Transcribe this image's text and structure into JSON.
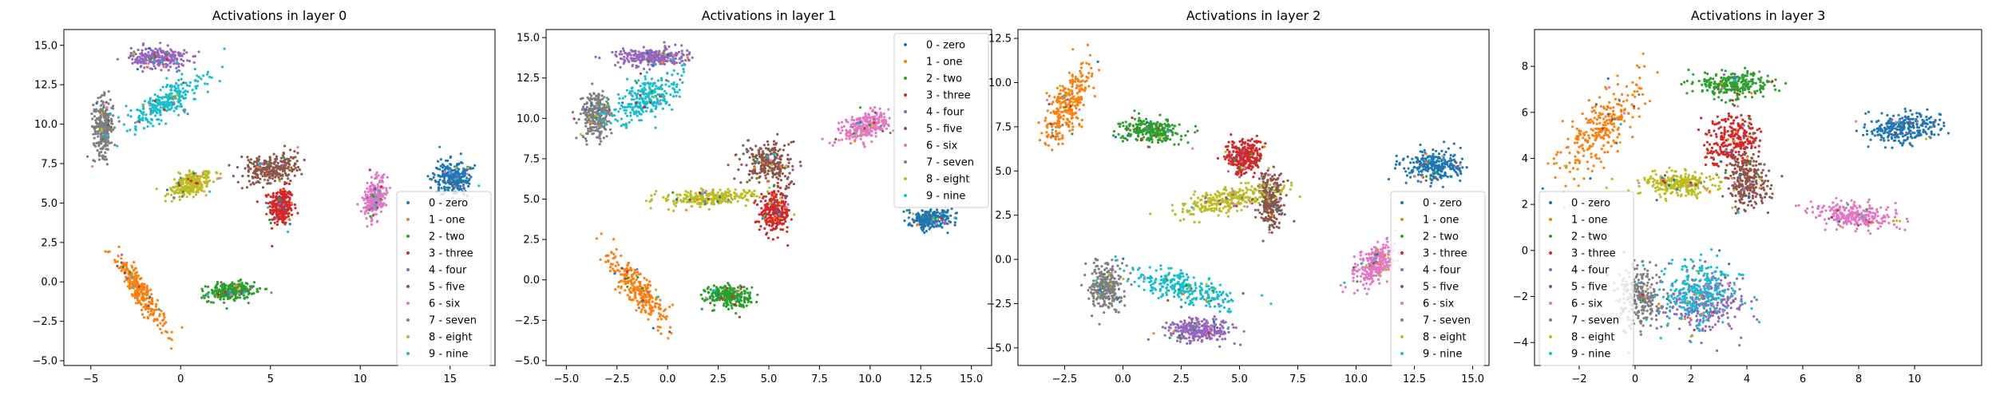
{
  "legend_items": [
    {
      "label": "0 - zero",
      "color": "#1f77b4"
    },
    {
      "label": "1 - one",
      "color": "#ff7f0e"
    },
    {
      "label": "2 - two",
      "color": "#2ca02c"
    },
    {
      "label": "3 - three",
      "color": "#d62728"
    },
    {
      "label": "4 - four",
      "color": "#9467bd"
    },
    {
      "label": "5 - five",
      "color": "#8c564b"
    },
    {
      "label": "6 - six",
      "color": "#e377c2"
    },
    {
      "label": "7 - seven",
      "color": "#7f7f7f"
    },
    {
      "label": "8 - eight",
      "color": "#bcbd22"
    },
    {
      "label": "9 - nine",
      "color": "#17becf"
    }
  ],
  "chart_data": [
    {
      "type": "scatter",
      "title": "Activations in layer 0",
      "xlabel": "",
      "ylabel": "",
      "xlim": [
        -6.5,
        17.5
      ],
      "ylim": [
        -5.3,
        16.0
      ],
      "xticks": [
        -5,
        0,
        5,
        10,
        15
      ],
      "yticks": [
        -5.0,
        -2.5,
        0.0,
        2.5,
        5.0,
        7.5,
        10.0,
        12.5,
        15.0
      ],
      "ytick_labels": [
        "−5.0",
        "−2.5",
        "0.0",
        "2.5",
        "5.0",
        "7.5",
        "10.0",
        "12.5",
        "15.0"
      ],
      "xtick_labels": [
        "−5",
        "0",
        "5",
        "10",
        "15"
      ],
      "legend_position": "lower right",
      "grid": false,
      "clusters": [
        {
          "class": 0,
          "cx": 15.2,
          "cy": 6.6,
          "sx": 0.9,
          "sy": 1.0,
          "angle": 0
        },
        {
          "class": 1,
          "cx": -2.3,
          "cy": -0.5,
          "sx": 0.5,
          "sy": 2.4,
          "angle": 0.5
        },
        {
          "class": 2,
          "cx": 2.8,
          "cy": -0.6,
          "sx": 1.2,
          "sy": 0.5,
          "angle": 0.1
        },
        {
          "class": 3,
          "cx": 5.6,
          "cy": 4.8,
          "sx": 0.6,
          "sy": 1.1,
          "angle": 0
        },
        {
          "class": 4,
          "cx": -1.2,
          "cy": 14.2,
          "sx": 1.4,
          "sy": 0.6,
          "angle": 0
        },
        {
          "class": 5,
          "cx": 5.0,
          "cy": 7.2,
          "sx": 1.4,
          "sy": 0.8,
          "angle": 0.2
        },
        {
          "class": 6,
          "cx": 10.8,
          "cy": 5.3,
          "sx": 0.5,
          "sy": 1.2,
          "angle": -0.2
        },
        {
          "class": 7,
          "cx": -4.3,
          "cy": 9.8,
          "sx": 0.5,
          "sy": 1.6,
          "angle": 0
        },
        {
          "class": 8,
          "cx": 0.6,
          "cy": 6.2,
          "sx": 1.2,
          "sy": 0.6,
          "angle": 0.4
        },
        {
          "class": 9,
          "cx": -0.8,
          "cy": 11.4,
          "sx": 2.3,
          "sy": 0.8,
          "angle": 0.6
        }
      ]
    },
    {
      "type": "scatter",
      "title": "Activations in layer 1",
      "xlabel": "",
      "ylabel": "",
      "xlim": [
        -6.0,
        16.0
      ],
      "ylim": [
        -5.3,
        15.5
      ],
      "xticks": [
        -5.0,
        -2.5,
        0.0,
        2.5,
        5.0,
        7.5,
        10.0,
        12.5,
        15.0
      ],
      "xtick_labels": [
        "−5.0",
        "−2.5",
        "0.0",
        "2.5",
        "5.0",
        "7.5",
        "10.0",
        "12.5",
        "15.0"
      ],
      "yticks": [
        -5.0,
        -2.5,
        0.0,
        2.5,
        5.0,
        7.5,
        10.0,
        12.5,
        15.0
      ],
      "ytick_labels": [
        "−5.0",
        "−2.5",
        "0.0",
        "2.5",
        "5.0",
        "7.5",
        "10.0",
        "12.5",
        "15.0"
      ],
      "legend_position": "upper right",
      "grid": false,
      "clusters": [
        {
          "class": 0,
          "cx": 13.0,
          "cy": 3.8,
          "sx": 1.0,
          "sy": 0.5,
          "angle": 0
        },
        {
          "class": 1,
          "cx": -1.5,
          "cy": -0.6,
          "sx": 0.6,
          "sy": 2.3,
          "angle": 0.6
        },
        {
          "class": 2,
          "cx": 3.0,
          "cy": -1.0,
          "sx": 1.0,
          "sy": 0.6,
          "angle": 0
        },
        {
          "class": 3,
          "cx": 5.3,
          "cy": 4.2,
          "sx": 0.7,
          "sy": 1.1,
          "angle": 0
        },
        {
          "class": 4,
          "cx": -0.8,
          "cy": 13.8,
          "sx": 1.6,
          "sy": 0.5,
          "angle": 0
        },
        {
          "class": 5,
          "cx": 5.0,
          "cy": 7.2,
          "sx": 1.0,
          "sy": 1.2,
          "angle": 0.4
        },
        {
          "class": 6,
          "cx": 9.8,
          "cy": 9.5,
          "sx": 1.2,
          "sy": 0.7,
          "angle": 0.5
        },
        {
          "class": 7,
          "cx": -3.5,
          "cy": 10.2,
          "sx": 0.7,
          "sy": 1.3,
          "angle": 0
        },
        {
          "class": 8,
          "cx": 2.2,
          "cy": 5.1,
          "sx": 2.0,
          "sy": 0.45,
          "angle": 0.05
        },
        {
          "class": 9,
          "cx": -1.2,
          "cy": 11.2,
          "sx": 1.8,
          "sy": 0.9,
          "angle": 0.7
        }
      ]
    },
    {
      "type": "scatter",
      "title": "Activations in layer 2",
      "xlabel": "",
      "ylabel": "",
      "xlim": [
        -4.5,
        15.7
      ],
      "ylim": [
        -6.0,
        13.0
      ],
      "xticks": [
        -2.5,
        0.0,
        2.5,
        5.0,
        7.5,
        10.0,
        12.5,
        15.0
      ],
      "xtick_labels": [
        "−2.5",
        "0.0",
        "2.5",
        "5.0",
        "7.5",
        "10.0",
        "12.5",
        "15.0"
      ],
      "yticks": [
        -5.0,
        -2.5,
        0.0,
        2.5,
        5.0,
        7.5,
        10.0,
        12.5
      ],
      "ytick_labels": [
        "−5.0",
        "−2.5",
        "0.0",
        "2.5",
        "5.0",
        "7.5",
        "10.0",
        "12.5"
      ],
      "legend_position": "lower right",
      "grid": false,
      "clusters": [
        {
          "class": 0,
          "cx": 13.3,
          "cy": 5.3,
          "sx": 1.2,
          "sy": 0.8,
          "angle": 0
        },
        {
          "class": 1,
          "cx": -2.4,
          "cy": 8.8,
          "sx": 0.6,
          "sy": 2.2,
          "angle": -0.35
        },
        {
          "class": 2,
          "cx": 1.2,
          "cy": 7.3,
          "sx": 1.1,
          "sy": 0.6,
          "angle": 0
        },
        {
          "class": 3,
          "cx": 5.2,
          "cy": 5.8,
          "sx": 0.7,
          "sy": 0.9,
          "angle": 0
        },
        {
          "class": 4,
          "cx": 3.3,
          "cy": -4.0,
          "sx": 1.3,
          "sy": 0.6,
          "angle": 0
        },
        {
          "class": 5,
          "cx": 6.3,
          "cy": 3.5,
          "sx": 0.5,
          "sy": 1.5,
          "angle": 0
        },
        {
          "class": 6,
          "cx": 10.8,
          "cy": -0.2,
          "sx": 0.6,
          "sy": 1.2,
          "angle": -0.5
        },
        {
          "class": 7,
          "cx": -0.7,
          "cy": -1.5,
          "sx": 0.6,
          "sy": 1.2,
          "angle": 0
        },
        {
          "class": 8,
          "cx": 4.5,
          "cy": 3.4,
          "sx": 2.0,
          "sy": 0.6,
          "angle": 0.3
        },
        {
          "class": 9,
          "cx": 2.5,
          "cy": -1.6,
          "sx": 2.2,
          "sy": 0.7,
          "angle": -0.4
        }
      ]
    },
    {
      "type": "scatter",
      "title": "Activations in layer 3",
      "xlabel": "",
      "ylabel": "",
      "xlim": [
        -3.6,
        12.4
      ],
      "ylim": [
        -5.0,
        9.6
      ],
      "xticks": [
        -2,
        0,
        2,
        4,
        6,
        8,
        10
      ],
      "xtick_labels": [
        "−2",
        "0",
        "2",
        "4",
        "6",
        "8",
        "10"
      ],
      "yticks": [
        -4,
        -2,
        0,
        2,
        4,
        6,
        8
      ],
      "ytick_labels": [
        "−4",
        "−2",
        "0",
        "2",
        "4",
        "6",
        "8"
      ],
      "legend_position": "lower left",
      "grid": false,
      "clusters": [
        {
          "class": 0,
          "cx": 9.6,
          "cy": 5.3,
          "sx": 1.2,
          "sy": 0.6,
          "angle": 0.1
        },
        {
          "class": 1,
          "cx": -1.2,
          "cy": 5.3,
          "sx": 0.8,
          "sy": 2.2,
          "angle": -0.55
        },
        {
          "class": 2,
          "cx": 3.5,
          "cy": 7.2,
          "sx": 1.2,
          "sy": 0.5,
          "angle": 0
        },
        {
          "class": 3,
          "cx": 3.5,
          "cy": 4.8,
          "sx": 0.9,
          "sy": 1.0,
          "angle": 0
        },
        {
          "class": 4,
          "cx": 2.6,
          "cy": -2.3,
          "sx": 1.3,
          "sy": 1.1,
          "angle": 0
        },
        {
          "class": 5,
          "cx": 4.0,
          "cy": 3.0,
          "sx": 0.7,
          "sy": 1.1,
          "angle": 0
        },
        {
          "class": 6,
          "cx": 7.8,
          "cy": 1.5,
          "sx": 1.3,
          "sy": 0.5,
          "angle": -0.1
        },
        {
          "class": 7,
          "cx": 0.2,
          "cy": -2.0,
          "sx": 0.7,
          "sy": 1.2,
          "angle": 0
        },
        {
          "class": 8,
          "cx": 1.6,
          "cy": 2.9,
          "sx": 1.2,
          "sy": 0.45,
          "angle": 0
        },
        {
          "class": 9,
          "cx": 2.3,
          "cy": -1.8,
          "sx": 1.2,
          "sy": 1.2,
          "angle": -0.5
        }
      ]
    }
  ]
}
